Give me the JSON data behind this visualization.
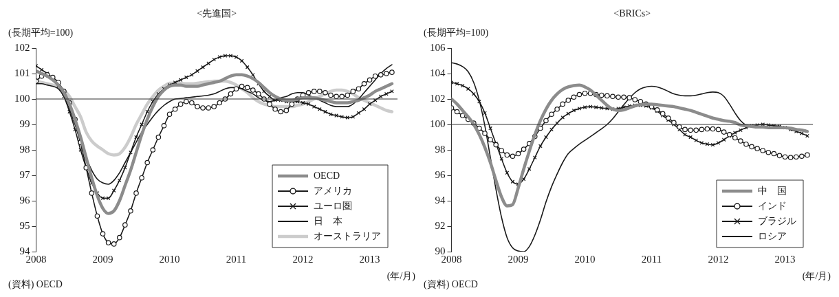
{
  "chart_data": [
    {
      "type": "line",
      "title": "<先進国>",
      "ylabel": "(長期平均=100)",
      "xlabel": "(年/月)",
      "annotations": [
        "(資料) OECD"
      ],
      "legend": "bottom right",
      "ylim": [
        94,
        102
      ],
      "yticks": [
        94,
        95,
        96,
        97,
        98,
        99,
        100,
        101,
        102
      ],
      "xlim": [
        "2008-01",
        "2013-06"
      ],
      "xticks": [
        {
          "value": "2008-01",
          "label": "2008"
        },
        {
          "value": "2009-01",
          "label": "2009"
        },
        {
          "value": "2010-01",
          "label": "2010"
        },
        {
          "value": "2011-01",
          "label": "2011"
        },
        {
          "value": "2012-01",
          "label": "2012"
        },
        {
          "value": "2013-01",
          "label": "2013"
        }
      ],
      "ref_lines": [
        {
          "axis": "y",
          "value": 100,
          "label": null
        }
      ],
      "x": [
        "2008-01",
        "2008-02",
        "2008-03",
        "2008-04",
        "2008-05",
        "2008-06",
        "2008-07",
        "2008-08",
        "2008-09",
        "2008-10",
        "2008-11",
        "2008-12",
        "2009-01",
        "2009-02",
        "2009-03",
        "2009-04",
        "2009-05",
        "2009-06",
        "2009-07",
        "2009-08",
        "2009-09",
        "2009-10",
        "2009-11",
        "2009-12",
        "2010-01",
        "2010-02",
        "2010-03",
        "2010-04",
        "2010-05",
        "2010-06",
        "2010-07",
        "2010-08",
        "2010-09",
        "2010-10",
        "2010-11",
        "2010-12",
        "2011-01",
        "2011-02",
        "2011-03",
        "2011-04",
        "2011-05",
        "2011-06",
        "2011-07",
        "2011-08",
        "2011-09",
        "2011-10",
        "2011-11",
        "2011-12",
        "2012-01",
        "2012-02",
        "2012-03",
        "2012-04",
        "2012-05",
        "2012-06",
        "2012-07",
        "2012-08",
        "2012-09",
        "2012-10",
        "2012-11",
        "2012-12",
        "2013-01",
        "2013-02",
        "2013-03",
        "2013-04",
        "2013-05"
      ],
      "series": [
        {
          "name": "OECD",
          "color": "#8c8c8c",
          "marker": "none",
          "values": [
            101.1,
            101.0,
            100.9,
            100.75,
            100.55,
            100.25,
            99.8,
            99.2,
            98.5,
            97.7,
            96.9,
            96.2,
            95.7,
            95.5,
            95.6,
            96.0,
            96.6,
            97.2,
            97.9,
            98.6,
            99.2,
            99.7,
            100.1,
            100.35,
            100.5,
            100.55,
            100.55,
            100.5,
            100.5,
            100.5,
            100.55,
            100.6,
            100.65,
            100.7,
            100.8,
            100.9,
            100.95,
            100.95,
            100.9,
            100.8,
            100.65,
            100.45,
            100.25,
            100.1,
            100.0,
            99.95,
            99.95,
            100.0,
            100.05,
            100.05,
            100.05,
            100.0,
            99.95,
            99.9,
            99.85,
            99.85,
            99.85,
            99.9,
            99.95,
            100.05,
            100.15,
            100.3,
            100.4,
            100.5,
            100.6
          ]
        },
        {
          "name": "アメリカ",
          "color": "#1a1a1a",
          "marker": "circle",
          "values": [
            100.7,
            100.9,
            100.95,
            100.85,
            100.65,
            100.3,
            99.85,
            99.2,
            98.3,
            97.3,
            96.3,
            95.4,
            94.7,
            94.35,
            94.3,
            94.55,
            95.05,
            95.6,
            96.3,
            96.9,
            97.5,
            98.0,
            98.5,
            98.95,
            99.4,
            99.6,
            99.8,
            99.9,
            99.85,
            99.7,
            99.65,
            99.65,
            99.7,
            99.85,
            100.0,
            100.2,
            100.4,
            100.5,
            100.45,
            100.35,
            100.2,
            100.0,
            99.8,
            99.6,
            99.5,
            99.55,
            99.8,
            100.0,
            100.15,
            100.25,
            100.3,
            100.3,
            100.25,
            100.15,
            100.1,
            100.1,
            100.15,
            100.3,
            100.4,
            100.6,
            100.75,
            100.9,
            100.95,
            101.0,
            101.05
          ]
        },
        {
          "name": "ユーロ圏",
          "color": "#1a1a1a",
          "marker": "cross",
          "values": [
            101.3,
            101.15,
            101.0,
            100.8,
            100.5,
            100.1,
            99.5,
            98.8,
            98.0,
            97.3,
            96.7,
            96.3,
            96.1,
            96.1,
            96.4,
            96.8,
            97.3,
            97.9,
            98.5,
            99.0,
            99.5,
            99.9,
            100.2,
            100.4,
            100.55,
            100.65,
            100.75,
            100.85,
            100.95,
            101.1,
            101.25,
            101.4,
            101.55,
            101.65,
            101.7,
            101.7,
            101.65,
            101.5,
            101.25,
            100.95,
            100.6,
            100.3,
            100.1,
            99.95,
            99.95,
            99.9,
            99.9,
            99.9,
            99.85,
            99.8,
            99.7,
            99.6,
            99.5,
            99.4,
            99.35,
            99.3,
            99.27,
            99.3,
            99.45,
            99.6,
            99.8,
            99.95,
            100.1,
            100.2,
            100.3
          ]
        },
        {
          "name": "日　本",
          "color": "#1a1a1a",
          "marker": "none",
          "values": [
            100.6,
            100.6,
            100.55,
            100.5,
            100.4,
            100.1,
            99.6,
            99.0,
            98.3,
            97.7,
            97.2,
            96.85,
            96.7,
            96.65,
            96.8,
            97.1,
            97.5,
            97.9,
            98.3,
            98.7,
            99.0,
            99.3,
            99.55,
            99.75,
            99.9,
            100.0,
            100.02,
            100.05,
            100.07,
            100.1,
            100.12,
            100.15,
            100.2,
            100.3,
            100.4,
            100.45,
            100.45,
            100.4,
            100.3,
            100.2,
            100.05,
            99.95,
            99.9,
            99.95,
            100.05,
            100.1,
            100.2,
            100.25,
            100.25,
            100.15,
            100.05,
            99.95,
            99.85,
            99.75,
            99.7,
            99.7,
            99.7,
            99.8,
            100.0,
            100.25,
            100.5,
            100.75,
            101.0,
            101.2,
            101.35
          ]
        },
        {
          "name": "オーストラリア",
          "color": "#cccccc",
          "marker": "none",
          "values": [
            100.7,
            100.65,
            100.6,
            100.55,
            100.5,
            100.35,
            100.1,
            99.7,
            99.3,
            98.7,
            98.35,
            98.15,
            98.0,
            97.85,
            97.8,
            97.85,
            98.1,
            98.5,
            99.0,
            99.4,
            99.8,
            100.1,
            100.35,
            100.5,
            100.62,
            100.63,
            100.62,
            100.6,
            100.6,
            100.62,
            100.65,
            100.68,
            100.7,
            100.7,
            100.7,
            100.65,
            100.55,
            100.4,
            100.25,
            100.05,
            99.9,
            99.8,
            99.75,
            99.7,
            99.7,
            99.7,
            99.7,
            99.75,
            99.8,
            99.9,
            100.0,
            100.1,
            100.2,
            100.3,
            100.35,
            100.35,
            100.3,
            100.2,
            100.05,
            99.95,
            99.85,
            99.75,
            99.65,
            99.55,
            99.5
          ]
        }
      ]
    },
    {
      "type": "line",
      "title": "<BRICs>",
      "ylabel": "(長期平均=100)",
      "xlabel": "(年/月)",
      "annotations": [
        "(資料) OECD"
      ],
      "legend": "bottom right",
      "ylim": [
        90,
        106
      ],
      "yticks": [
        90,
        92,
        94,
        96,
        98,
        100,
        102,
        104,
        106
      ],
      "xlim": [
        "2008-01",
        "2013-06"
      ],
      "xticks": [
        {
          "value": "2008-01",
          "label": "2008"
        },
        {
          "value": "2009-01",
          "label": "2009"
        },
        {
          "value": "2010-01",
          "label": "2010"
        },
        {
          "value": "2011-01",
          "label": "2011"
        },
        {
          "value": "2012-01",
          "label": "2012"
        },
        {
          "value": "2013-01",
          "label": "2013"
        }
      ],
      "ref_lines": [
        {
          "axis": "y",
          "value": 100,
          "label": null
        }
      ],
      "x": [
        "2008-01",
        "2008-02",
        "2008-03",
        "2008-04",
        "2008-05",
        "2008-06",
        "2008-07",
        "2008-08",
        "2008-09",
        "2008-10",
        "2008-11",
        "2008-12",
        "2009-01",
        "2009-02",
        "2009-03",
        "2009-04",
        "2009-05",
        "2009-06",
        "2009-07",
        "2009-08",
        "2009-09",
        "2009-10",
        "2009-11",
        "2009-12",
        "2010-01",
        "2010-02",
        "2010-03",
        "2010-04",
        "2010-05",
        "2010-06",
        "2010-07",
        "2010-08",
        "2010-09",
        "2010-10",
        "2010-11",
        "2010-12",
        "2011-01",
        "2011-02",
        "2011-03",
        "2011-04",
        "2011-05",
        "2011-06",
        "2011-07",
        "2011-08",
        "2011-09",
        "2011-10",
        "2011-11",
        "2011-12",
        "2012-01",
        "2012-02",
        "2012-03",
        "2012-04",
        "2012-05",
        "2012-06",
        "2012-07",
        "2012-08",
        "2012-09",
        "2012-10",
        "2012-11",
        "2012-12",
        "2013-01",
        "2013-02",
        "2013-03",
        "2013-04",
        "2013-05"
      ],
      "series": [
        {
          "name": "中　国",
          "color": "#8c8c8c",
          "marker": "none",
          "values": [
            102.0,
            101.6,
            101.1,
            100.6,
            100.0,
            99.2,
            98.2,
            97.0,
            95.6,
            94.3,
            93.6,
            93.7,
            95.0,
            96.5,
            97.9,
            99.2,
            100.3,
            101.2,
            101.9,
            102.4,
            102.75,
            102.95,
            103.05,
            103.1,
            102.95,
            102.7,
            102.3,
            101.9,
            101.5,
            101.2,
            101.1,
            101.15,
            101.3,
            101.45,
            101.55,
            101.6,
            101.6,
            101.55,
            101.5,
            101.45,
            101.4,
            101.3,
            101.2,
            101.1,
            100.95,
            100.8,
            100.65,
            100.5,
            100.4,
            100.3,
            100.25,
            100.15,
            99.95,
            99.9,
            99.85,
            99.8,
            99.8,
            99.75,
            99.75,
            99.75,
            99.75,
            99.7,
            99.6,
            99.55,
            99.45
          ]
        },
        {
          "name": "インド",
          "color": "#1a1a1a",
          "marker": "circle",
          "values": [
            101.3,
            101.0,
            100.7,
            100.4,
            100.1,
            99.7,
            99.3,
            98.8,
            98.4,
            97.95,
            97.6,
            97.5,
            97.7,
            98.05,
            98.5,
            99.05,
            99.7,
            100.3,
            100.8,
            101.2,
            101.6,
            101.9,
            102.15,
            102.35,
            102.45,
            102.45,
            102.35,
            102.3,
            102.25,
            102.2,
            102.15,
            102.15,
            102.1,
            101.95,
            101.8,
            101.6,
            101.4,
            101.15,
            100.85,
            100.5,
            100.15,
            99.8,
            99.6,
            99.55,
            99.55,
            99.6,
            99.65,
            99.65,
            99.6,
            99.4,
            99.2,
            98.95,
            98.7,
            98.45,
            98.25,
            98.1,
            97.95,
            97.8,
            97.7,
            97.55,
            97.45,
            97.4,
            97.45,
            97.5,
            97.6
          ]
        },
        {
          "name": "ブラジル",
          "color": "#1a1a1a",
          "marker": "cross",
          "values": [
            103.3,
            103.2,
            103.05,
            102.8,
            102.4,
            101.8,
            100.9,
            99.7,
            98.5,
            97.3,
            96.2,
            95.5,
            95.3,
            95.7,
            96.5,
            97.4,
            98.3,
            99.0,
            99.6,
            100.1,
            100.55,
            100.85,
            101.1,
            101.25,
            101.35,
            101.4,
            101.35,
            101.3,
            101.25,
            101.2,
            101.25,
            101.35,
            101.45,
            101.5,
            101.5,
            101.45,
            101.3,
            101.05,
            100.7,
            100.35,
            100.0,
            99.6,
            99.2,
            99.0,
            98.75,
            98.55,
            98.45,
            98.4,
            98.55,
            98.8,
            99.1,
            99.35,
            99.55,
            99.75,
            99.9,
            99.95,
            100.0,
            99.95,
            99.9,
            99.85,
            99.75,
            99.6,
            99.45,
            99.3,
            99.1
          ]
        },
        {
          "name": "ロシア",
          "color": "#1a1a1a",
          "marker": "none",
          "values": [
            104.85,
            104.75,
            104.55,
            104.15,
            103.3,
            101.9,
            99.9,
            97.4,
            94.9,
            92.7,
            91.1,
            90.3,
            90.05,
            90.0,
            90.4,
            91.3,
            92.5,
            93.9,
            95.1,
            96.1,
            97.0,
            97.7,
            98.1,
            98.45,
            98.75,
            99.05,
            99.35,
            99.65,
            100.0,
            100.45,
            101.0,
            101.55,
            102.05,
            102.5,
            102.8,
            102.95,
            103.0,
            102.95,
            102.8,
            102.6,
            102.4,
            102.3,
            102.25,
            102.25,
            102.3,
            102.4,
            102.5,
            102.55,
            102.5,
            102.2,
            101.6,
            100.9,
            100.3,
            99.95,
            99.85,
            99.8,
            99.8,
            99.8,
            99.8,
            99.75,
            99.75,
            99.7,
            99.65,
            99.6,
            99.5
          ]
        }
      ]
    }
  ]
}
